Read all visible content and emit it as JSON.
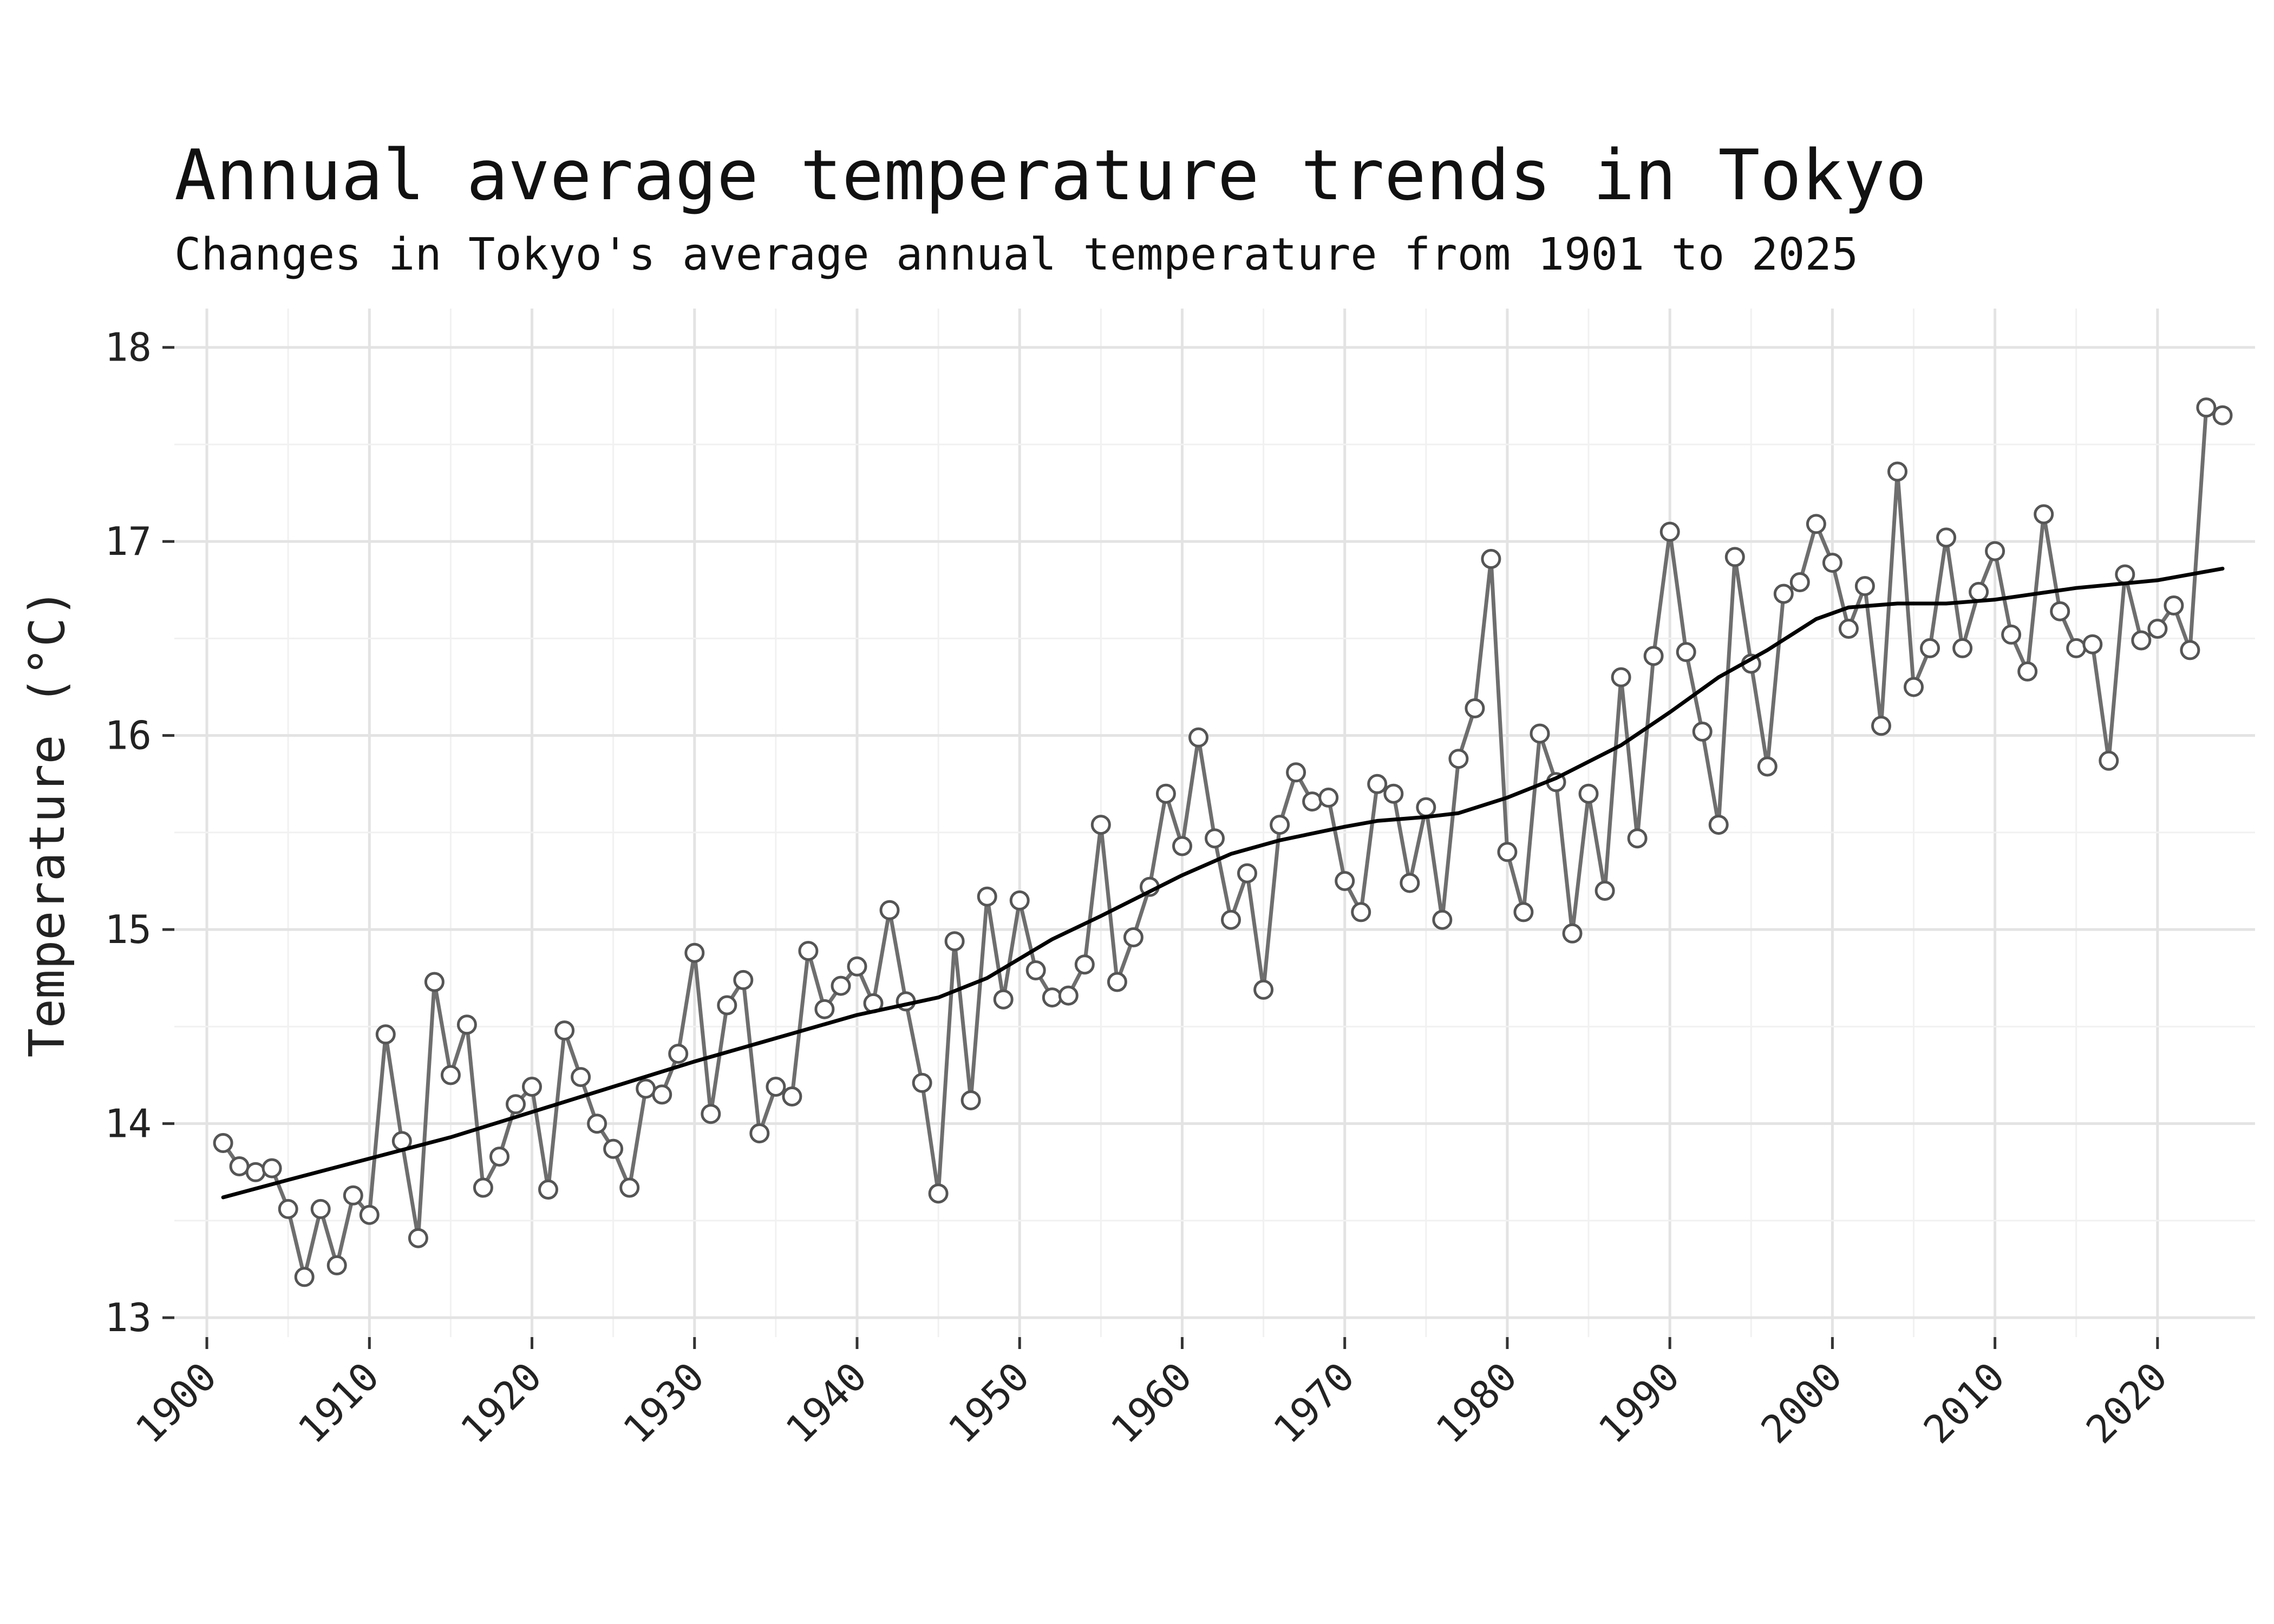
{
  "chart_data": {
    "type": "line",
    "title": "Annual average temperature trends in Tokyo",
    "subtitle": "Changes in Tokyo's average annual temperature from 1901 to 2025",
    "xlabel": "",
    "ylabel": "Temperature (°C)",
    "xlim": [
      1898,
      2026
    ],
    "ylim": [
      12.9,
      18.2
    ],
    "xticks": [
      1900,
      1910,
      1920,
      1930,
      1940,
      1950,
      1960,
      1970,
      1980,
      1990,
      2000,
      2010,
      2020
    ],
    "yticks": [
      13,
      14,
      15,
      16,
      17,
      18
    ],
    "grid": true,
    "series": [
      {
        "style": "line+points",
        "color": "#6e6e6e",
        "x": [
          1901,
          1902,
          1903,
          1904,
          1905,
          1906,
          1907,
          1908,
          1909,
          1910,
          1911,
          1912,
          1913,
          1914,
          1915,
          1916,
          1917,
          1918,
          1919,
          1920,
          1921,
          1922,
          1923,
          1924,
          1925,
          1926,
          1927,
          1928,
          1929,
          1930,
          1931,
          1932,
          1933,
          1934,
          1935,
          1936,
          1937,
          1938,
          1939,
          1940,
          1941,
          1942,
          1943,
          1944,
          1945,
          1946,
          1947,
          1948,
          1949,
          1950,
          1951,
          1952,
          1953,
          1954,
          1955,
          1956,
          1957,
          1958,
          1959,
          1960,
          1961,
          1962,
          1963,
          1964,
          1965,
          1966,
          1967,
          1968,
          1969,
          1970,
          1971,
          1972,
          1973,
          1974,
          1975,
          1976,
          1977,
          1978,
          1979,
          1980,
          1981,
          1982,
          1983,
          1984,
          1985,
          1986,
          1987,
          1988,
          1989,
          1990,
          1991,
          1992,
          1993,
          1994,
          1995,
          1996,
          1997,
          1998,
          1999,
          2000,
          2001,
          2002,
          2003,
          2004,
          2005,
          2006,
          2007,
          2008,
          2009,
          2010,
          2011,
          2012,
          2013,
          2014,
          2015,
          2016,
          2017,
          2018,
          2019,
          2020,
          2021,
          2022,
          2023,
          2024
        ],
        "y": [
          13.9,
          13.78,
          13.75,
          13.77,
          13.56,
          13.21,
          13.56,
          13.27,
          13.63,
          13.53,
          14.46,
          13.91,
          13.41,
          14.73,
          14.25,
          14.51,
          13.67,
          13.83,
          14.1,
          14.19,
          13.66,
          14.48,
          14.24,
          14.0,
          13.87,
          13.67,
          14.18,
          14.15,
          14.36,
          14.88,
          14.05,
          14.61,
          14.74,
          13.95,
          14.19,
          14.14,
          14.89,
          14.59,
          14.71,
          14.81,
          14.62,
          15.1,
          14.63,
          14.21,
          13.64,
          14.94,
          14.12,
          15.17,
          14.64,
          15.15,
          14.79,
          14.65,
          14.66,
          14.82,
          15.54,
          14.73,
          14.96,
          15.22,
          15.7,
          15.43,
          15.99,
          15.47,
          15.05,
          15.29,
          14.69,
          15.54,
          15.81,
          15.66,
          15.68,
          15.25,
          15.09,
          15.75,
          15.7,
          15.24,
          15.63,
          15.05,
          15.88,
          16.14,
          16.91,
          15.4,
          15.09,
          16.01,
          15.76,
          14.98,
          15.7,
          15.2,
          16.3,
          15.47,
          16.41,
          17.05,
          16.43,
          16.02,
          15.54,
          16.92,
          16.37,
          15.84,
          16.73,
          16.79,
          17.09,
          16.89,
          16.55,
          16.77,
          16.05,
          17.36,
          16.25,
          16.45,
          17.02,
          16.45,
          16.74,
          16.95,
          16.52,
          16.33,
          17.14,
          16.64,
          16.45,
          16.47,
          15.87,
          16.83,
          16.49,
          16.55,
          16.67,
          16.44,
          17.69,
          17.65
        ]
      },
      {
        "style": "smooth-trend",
        "color": "#000000",
        "x": [
          1901,
          1905,
          1910,
          1915,
          1920,
          1925,
          1930,
          1935,
          1940,
          1945,
          1948,
          1952,
          1955,
          1960,
          1963,
          1966,
          1970,
          1972,
          1975,
          1977,
          1980,
          1983,
          1987,
          1990,
          1993,
          1996,
          1999,
          2001,
          2004,
          2007,
          2010,
          2015,
          2020,
          2024
        ],
        "y": [
          13.62,
          13.71,
          13.82,
          13.93,
          14.06,
          14.19,
          14.32,
          14.44,
          14.56,
          14.65,
          14.75,
          14.95,
          15.07,
          15.28,
          15.39,
          15.46,
          15.53,
          15.56,
          15.58,
          15.6,
          15.68,
          15.78,
          15.95,
          16.12,
          16.3,
          16.44,
          16.6,
          16.66,
          16.68,
          16.68,
          16.7,
          16.76,
          16.8,
          16.86
        ]
      }
    ]
  }
}
